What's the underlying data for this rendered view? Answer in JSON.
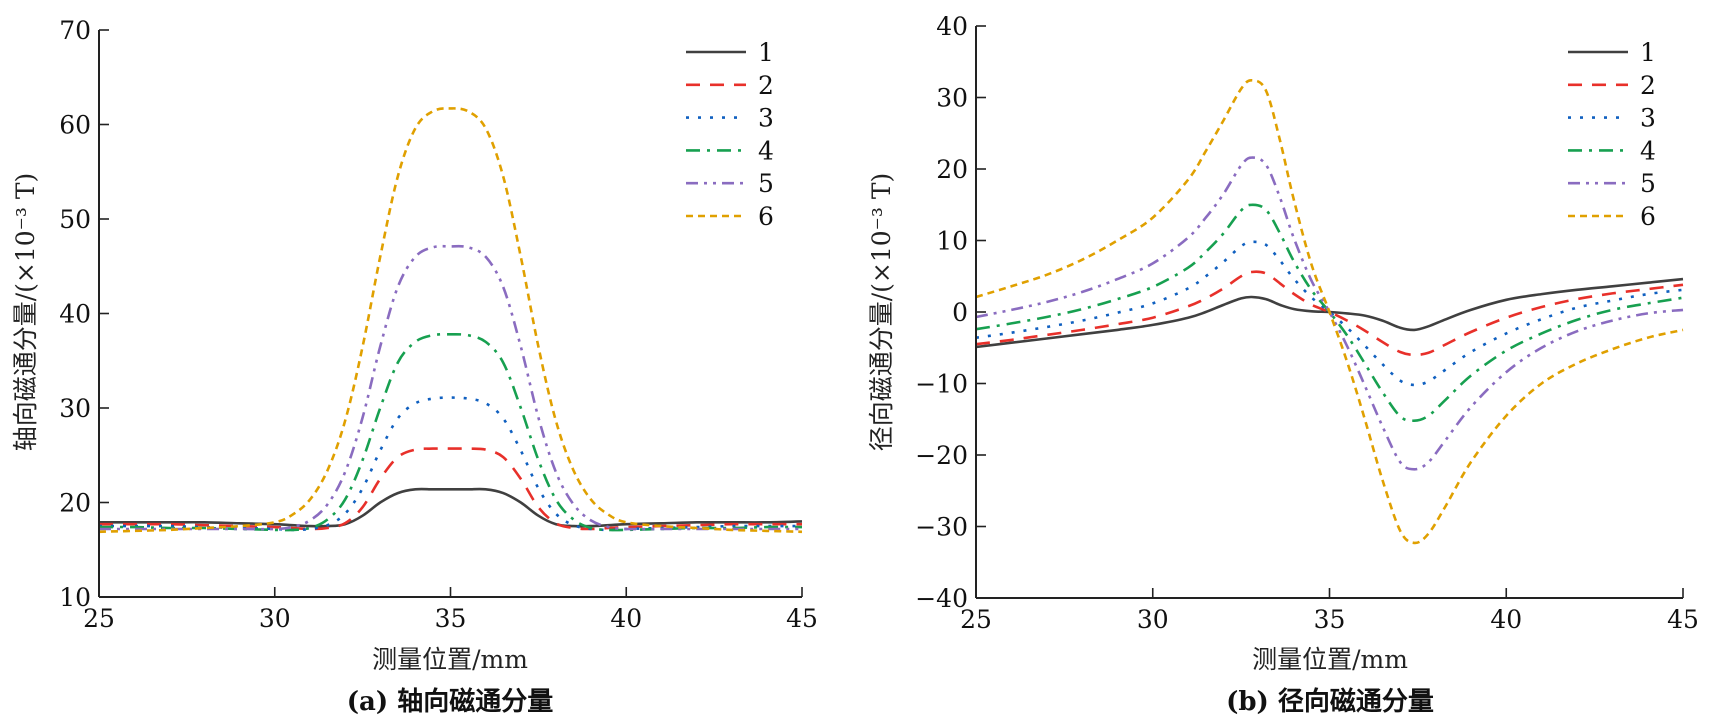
{
  "chart_data": [
    {
      "type": "line",
      "panel": "a",
      "title": "",
      "caption": "(a) 轴向磁通分量",
      "xlabel": "测量位置/mm",
      "ylabel": "轴向磁通分量/(×10⁻³ T)",
      "xlim": [
        25,
        45
      ],
      "ylim": [
        10,
        70
      ],
      "xticks": [
        25,
        30,
        35,
        40,
        45
      ],
      "yticks": [
        10,
        20,
        30,
        40,
        50,
        60,
        70
      ],
      "grid": false,
      "legend_position": "top-right",
      "x": [
        25,
        26,
        27,
        28,
        29,
        30,
        30.5,
        31,
        31.5,
        32,
        32.5,
        33,
        33.5,
        34,
        34.5,
        35,
        35.5,
        36,
        36.5,
        37,
        37.5,
        38,
        38.5,
        39,
        39.5,
        40,
        41,
        42,
        43,
        44,
        45
      ],
      "series": [
        {
          "name": "1",
          "color": "#404040",
          "dash": "solid",
          "values": [
            17.9,
            17.9,
            17.9,
            17.9,
            17.8,
            17.7,
            17.6,
            17.5,
            17.5,
            17.7,
            18.6,
            20.0,
            21.0,
            21.4,
            21.4,
            21.4,
            21.4,
            21.4,
            21.0,
            20.0,
            18.6,
            17.7,
            17.5,
            17.5,
            17.6,
            17.7,
            17.8,
            17.9,
            17.9,
            17.9,
            18.0
          ]
        },
        {
          "name": "2",
          "color": "#e8302a",
          "dash": "dashed",
          "values": [
            17.7,
            17.7,
            17.7,
            17.6,
            17.5,
            17.4,
            17.3,
            17.2,
            17.3,
            17.8,
            19.5,
            22.5,
            24.8,
            25.6,
            25.7,
            25.7,
            25.7,
            25.6,
            24.8,
            22.5,
            19.5,
            17.8,
            17.3,
            17.2,
            17.3,
            17.4,
            17.5,
            17.6,
            17.7,
            17.7,
            17.7
          ]
        },
        {
          "name": "3",
          "color": "#1060c0",
          "dash": "dotted",
          "values": [
            17.5,
            17.5,
            17.5,
            17.4,
            17.3,
            17.2,
            17.1,
            17.2,
            17.6,
            18.8,
            21.5,
            25.5,
            28.9,
            30.5,
            31.0,
            31.1,
            31.0,
            30.5,
            28.9,
            25.5,
            21.5,
            18.8,
            17.6,
            17.2,
            17.1,
            17.2,
            17.3,
            17.4,
            17.5,
            17.5,
            17.5
          ]
        },
        {
          "name": "4",
          "color": "#17a050",
          "dash": "dashdot",
          "values": [
            17.4,
            17.4,
            17.3,
            17.3,
            17.2,
            17.1,
            17.1,
            17.3,
            18.2,
            20.3,
            24.5,
            30.0,
            34.8,
            37.0,
            37.7,
            37.8,
            37.7,
            37.0,
            34.8,
            30.0,
            24.5,
            20.3,
            18.2,
            17.3,
            17.1,
            17.1,
            17.2,
            17.3,
            17.3,
            17.4,
            17.4
          ]
        },
        {
          "name": "5",
          "color": "#8a6cc0",
          "dash": "dashdotdot",
          "values": [
            17.2,
            17.2,
            17.2,
            17.2,
            17.2,
            17.2,
            17.4,
            18.1,
            19.8,
            23.2,
            29.0,
            36.5,
            42.8,
            46.0,
            47.0,
            47.1,
            47.0,
            46.0,
            42.8,
            36.5,
            29.0,
            23.2,
            19.8,
            18.1,
            17.4,
            17.2,
            17.2,
            17.2,
            17.2,
            17.2,
            17.2
          ]
        },
        {
          "name": "6",
          "color": "#e0a000",
          "dash": "shortdash",
          "values": [
            16.9,
            17.0,
            17.1,
            17.3,
            17.5,
            17.9,
            18.7,
            20.3,
            23.4,
            28.6,
            36.5,
            46.0,
            54.5,
            59.6,
            61.4,
            61.7,
            61.4,
            59.6,
            54.5,
            46.0,
            36.5,
            28.6,
            23.4,
            20.3,
            18.7,
            17.9,
            17.5,
            17.3,
            17.1,
            17.0,
            16.9
          ]
        }
      ]
    },
    {
      "type": "line",
      "panel": "b",
      "title": "",
      "caption": "(b) 径向磁通分量",
      "xlabel": "测量位置/mm",
      "ylabel": "径向磁通分量/(×10⁻³ T)",
      "xlim": [
        25,
        45
      ],
      "ylim": [
        -40,
        40
      ],
      "xticks": [
        25,
        30,
        35,
        40,
        45
      ],
      "yticks": [
        -40,
        -30,
        -20,
        -10,
        0,
        10,
        20,
        30,
        40
      ],
      "ytick_labels": [
        "−40",
        "−30",
        "−20",
        "−10",
        "0",
        "10",
        "20",
        "30",
        "40"
      ],
      "grid": false,
      "legend_position": "top-right",
      "x": [
        25,
        26,
        27,
        28,
        29,
        30,
        31,
        31.5,
        32,
        32.5,
        32.8,
        33.2,
        33.6,
        34,
        34.5,
        35,
        35.5,
        36,
        36.5,
        37,
        37.4,
        37.8,
        38.3,
        39,
        40,
        41,
        42,
        43,
        44,
        45
      ],
      "series": [
        {
          "name": "1",
          "color": "#404040",
          "dash": "solid",
          "values": [
            -4.9,
            -4.3,
            -3.7,
            -3.1,
            -2.5,
            -1.8,
            -0.8,
            0.0,
            1.0,
            1.9,
            2.1,
            1.8,
            1.0,
            0.4,
            0.1,
            0.0,
            -0.2,
            -0.5,
            -1.2,
            -2.2,
            -2.5,
            -2.0,
            -1.0,
            0.3,
            1.7,
            2.5,
            3.1,
            3.6,
            4.1,
            4.6
          ]
        },
        {
          "name": "2",
          "color": "#e8302a",
          "dash": "dashed",
          "values": [
            -4.5,
            -3.9,
            -3.2,
            -2.5,
            -1.7,
            -0.8,
            0.8,
            1.9,
            3.3,
            5.0,
            5.6,
            5.4,
            4.0,
            2.5,
            1.0,
            0.0,
            -1.2,
            -2.6,
            -4.2,
            -5.6,
            -6.0,
            -5.7,
            -4.5,
            -2.8,
            -0.8,
            0.7,
            1.8,
            2.6,
            3.2,
            3.8
          ]
        },
        {
          "name": "3",
          "color": "#1060c0",
          "dash": "dotted",
          "values": [
            -3.6,
            -2.9,
            -2.1,
            -1.2,
            -0.1,
            1.2,
            3.3,
            5.0,
            7.0,
            9.2,
            9.8,
            9.4,
            7.2,
            4.6,
            2.0,
            0.0,
            -2.2,
            -4.7,
            -7.3,
            -9.6,
            -10.2,
            -9.7,
            -8.0,
            -5.6,
            -3.0,
            -1.0,
            0.6,
            1.6,
            2.5,
            3.1
          ]
        },
        {
          "name": "4",
          "color": "#17a050",
          "dash": "dashdot",
          "values": [
            -2.4,
            -1.6,
            -0.7,
            0.4,
            1.8,
            3.5,
            6.2,
            8.4,
            11.0,
            14.2,
            15.0,
            14.3,
            11.0,
            7.0,
            3.0,
            0.0,
            -3.3,
            -7.2,
            -11.2,
            -14.6,
            -15.2,
            -14.5,
            -12.2,
            -8.9,
            -5.4,
            -3.0,
            -1.1,
            0.3,
            1.2,
            2.0
          ]
        },
        {
          "name": "5",
          "color": "#8a6cc0",
          "dash": "dashdotdot",
          "values": [
            -0.7,
            0.3,
            1.4,
            2.8,
            4.6,
            6.8,
            10.4,
            13.2,
            16.5,
            20.5,
            21.6,
            20.6,
            16.0,
            10.2,
            4.3,
            0.0,
            -4.8,
            -10.3,
            -16.0,
            -21.0,
            -22.0,
            -21.0,
            -17.8,
            -13.3,
            -8.4,
            -5.0,
            -2.7,
            -1.2,
            -0.2,
            0.3
          ]
        },
        {
          "name": "6",
          "color": "#e0a000",
          "dash": "shortdash",
          "values": [
            2.1,
            3.6,
            5.2,
            7.3,
            10.0,
            13.2,
            18.5,
            22.5,
            26.8,
            31.2,
            32.4,
            31.0,
            24.0,
            15.5,
            6.5,
            0.0,
            -7.0,
            -15.0,
            -23.5,
            -30.6,
            -32.3,
            -31.0,
            -27.0,
            -21.0,
            -14.5,
            -10.0,
            -7.2,
            -5.2,
            -3.6,
            -2.5
          ]
        }
      ]
    }
  ]
}
